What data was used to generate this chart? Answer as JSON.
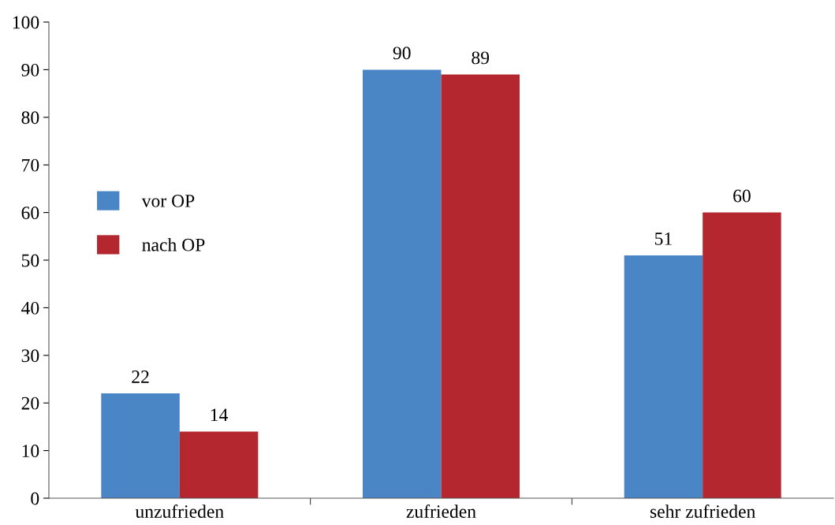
{
  "chart_data": {
    "type": "bar",
    "categories": [
      "unzufrieden",
      "zufrieden",
      "sehr zufrieden"
    ],
    "series": [
      {
        "name": "vor OP",
        "color": "#4a86c6",
        "values": [
          22,
          90,
          51
        ]
      },
      {
        "name": "nach OP",
        "color": "#b5272f",
        "values": [
          14,
          89,
          60
        ]
      }
    ],
    "ylim": [
      0,
      100
    ],
    "yticks": [
      0,
      10,
      20,
      30,
      40,
      50,
      60,
      70,
      80,
      90,
      100
    ],
    "data_labels": true,
    "legend": "left",
    "grid": false
  }
}
